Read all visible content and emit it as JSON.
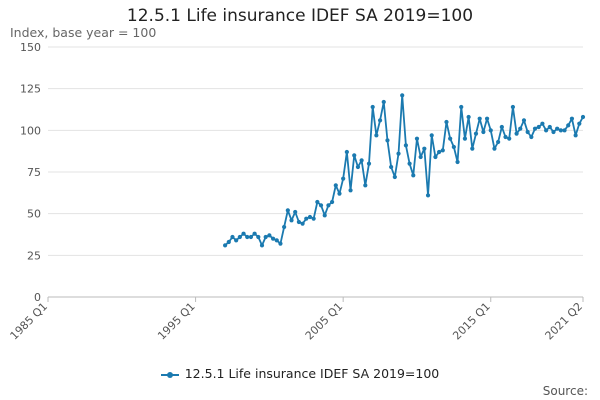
{
  "chart_data": {
    "type": "line",
    "title": "12.5.1 Life insurance IDEF SA 2019=100",
    "ylabel": "Index, base year = 100",
    "ylim": [
      0,
      150
    ],
    "yticks": [
      0,
      25,
      50,
      75,
      100,
      125,
      150
    ],
    "x_tick_labels": [
      "1985 Q1",
      "1995 Q1",
      "2005 Q1",
      "2015 Q1",
      "2021 Q2"
    ],
    "x_tick_values": [
      1985,
      1995,
      2005,
      2015,
      2021.25
    ],
    "xlim": [
      1985,
      2021.25
    ],
    "grid": true,
    "legend": "bottom",
    "color": "#1b7ab0",
    "series": [
      {
        "name": "12.5.1 Life insurance IDEF SA 2019=100",
        "points": [
          [
            1997.0,
            31
          ],
          [
            1997.25,
            33
          ],
          [
            1997.5,
            36
          ],
          [
            1997.75,
            34
          ],
          [
            1998.0,
            36
          ],
          [
            1998.25,
            38
          ],
          [
            1998.5,
            36
          ],
          [
            1998.75,
            36
          ],
          [
            1999.0,
            38
          ],
          [
            1999.25,
            36
          ],
          [
            1999.5,
            31
          ],
          [
            1999.75,
            36
          ],
          [
            2000.0,
            37
          ],
          [
            2000.25,
            35
          ],
          [
            2000.5,
            34
          ],
          [
            2000.75,
            32
          ],
          [
            2001.0,
            42
          ],
          [
            2001.25,
            52
          ],
          [
            2001.5,
            46
          ],
          [
            2001.75,
            51
          ],
          [
            2002.0,
            45
          ],
          [
            2002.25,
            44
          ],
          [
            2002.5,
            47
          ],
          [
            2002.75,
            48
          ],
          [
            2003.0,
            47
          ],
          [
            2003.25,
            57
          ],
          [
            2003.5,
            55
          ],
          [
            2003.75,
            49
          ],
          [
            2004.0,
            55
          ],
          [
            2004.25,
            57
          ],
          [
            2004.5,
            67
          ],
          [
            2004.75,
            62
          ],
          [
            2005.0,
            71
          ],
          [
            2005.25,
            87
          ],
          [
            2005.5,
            64
          ],
          [
            2005.75,
            85
          ],
          [
            2006.0,
            78
          ],
          [
            2006.25,
            82
          ],
          [
            2006.5,
            67
          ],
          [
            2006.75,
            80
          ],
          [
            2007.0,
            114
          ],
          [
            2007.25,
            97
          ],
          [
            2007.5,
            106
          ],
          [
            2007.75,
            117
          ],
          [
            2008.0,
            94
          ],
          [
            2008.25,
            78
          ],
          [
            2008.5,
            72
          ],
          [
            2008.75,
            86
          ],
          [
            2009.0,
            121
          ],
          [
            2009.25,
            91
          ],
          [
            2009.5,
            80
          ],
          [
            2009.75,
            73
          ],
          [
            2010.0,
            95
          ],
          [
            2010.25,
            84
          ],
          [
            2010.5,
            89
          ],
          [
            2010.75,
            61
          ],
          [
            2011.0,
            97
          ],
          [
            2011.25,
            84
          ],
          [
            2011.5,
            87
          ],
          [
            2011.75,
            88
          ],
          [
            2012.0,
            105
          ],
          [
            2012.25,
            95
          ],
          [
            2012.5,
            90
          ],
          [
            2012.75,
            81
          ],
          [
            2013.0,
            114
          ],
          [
            2013.25,
            95
          ],
          [
            2013.5,
            108
          ],
          [
            2013.75,
            89
          ],
          [
            2014.0,
            98
          ],
          [
            2014.25,
            107
          ],
          [
            2014.5,
            99
          ],
          [
            2014.75,
            107
          ],
          [
            2015.0,
            100
          ],
          [
            2015.25,
            89
          ],
          [
            2015.5,
            93
          ],
          [
            2015.75,
            102
          ],
          [
            2016.0,
            96
          ],
          [
            2016.25,
            95
          ],
          [
            2016.5,
            114
          ],
          [
            2016.75,
            98
          ],
          [
            2017.0,
            101
          ],
          [
            2017.25,
            106
          ],
          [
            2017.5,
            99
          ],
          [
            2017.75,
            96
          ],
          [
            2018.0,
            101
          ],
          [
            2018.25,
            102
          ],
          [
            2018.5,
            104
          ],
          [
            2018.75,
            100
          ],
          [
            2019.0,
            102
          ],
          [
            2019.25,
            99
          ],
          [
            2019.5,
            101
          ],
          [
            2019.75,
            100
          ],
          [
            2020.0,
            100
          ],
          [
            2020.25,
            103
          ],
          [
            2020.5,
            107
          ],
          [
            2020.75,
            97
          ],
          [
            2021.0,
            104
          ],
          [
            2021.25,
            108
          ]
        ]
      }
    ]
  },
  "legend_label": "12.5.1 Life insurance IDEF SA 2019=100",
  "source_label": "Source:"
}
